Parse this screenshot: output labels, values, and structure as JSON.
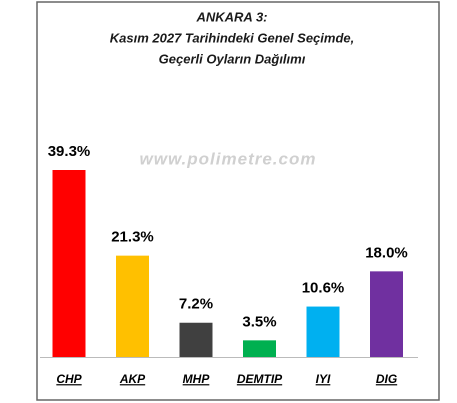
{
  "chart_data": {
    "type": "bar",
    "title": [
      "ANKARA 3:",
      "Kasım 2027 Tarihindeki Genel Seçimde,",
      "Geçerli Oyların Dağılımı"
    ],
    "annotation": "www.polimetre.com",
    "categories": [
      "CHP",
      "AKP",
      "MHP",
      "DEMTIP",
      "IYI",
      "DIG"
    ],
    "values": [
      39.3,
      21.3,
      7.2,
      3.5,
      10.6,
      18.0
    ],
    "value_labels": [
      "39.3%",
      "21.3%",
      "7.2%",
      "3.5%",
      "10.6%",
      "18.0%"
    ],
    "colors": [
      "#ff0000",
      "#ffc000",
      "#404040",
      "#00b050",
      "#00b0f0",
      "#7030a0"
    ]
  }
}
